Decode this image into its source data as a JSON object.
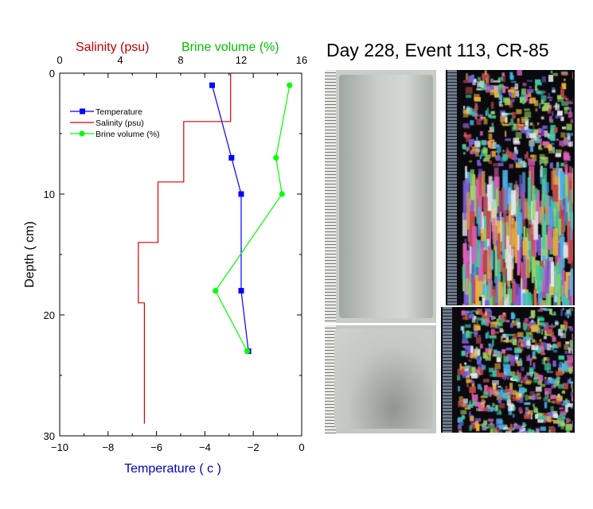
{
  "chart_data": {
    "type": "line",
    "y_axis": {
      "label": "Depth ( cm)",
      "range": [
        30,
        0
      ],
      "ticks": [
        0,
        10,
        20,
        30
      ]
    },
    "x_axis_bottom": {
      "label": "Temperature ( c )",
      "range": [
        -10,
        0
      ],
      "ticks": [
        -10,
        -8,
        -6,
        -4,
        -2,
        0
      ],
      "color": "#0000c0"
    },
    "x_axis_top": {
      "range": [
        0,
        16
      ],
      "ticks": [
        0,
        4,
        8,
        12,
        16
      ],
      "labels": [
        {
          "text": "Salinity (psu)",
          "color": "#c00000"
        },
        {
          "text": "Brine volume (%)",
          "color": "#00c000"
        }
      ]
    },
    "legend_position": "top-left",
    "series": [
      {
        "name": "Temperature",
        "axis": "bottom",
        "color": "#0000ff",
        "marker": "square",
        "points": [
          [
            -3.7,
            1
          ],
          [
            -2.9,
            7
          ],
          [
            -2.5,
            10
          ],
          [
            -2.5,
            18
          ],
          [
            -2.2,
            23
          ]
        ]
      },
      {
        "name": "Salinity (psu)",
        "axis": "top",
        "color": "#e00000",
        "marker": "none",
        "step": true,
        "points": [
          [
            11.3,
            0
          ],
          [
            11.3,
            4
          ],
          [
            8.2,
            4
          ],
          [
            8.2,
            9
          ],
          [
            6.5,
            9
          ],
          [
            6.5,
            14
          ],
          [
            5.2,
            14
          ],
          [
            5.2,
            19
          ],
          [
            5.6,
            19
          ],
          [
            5.6,
            29
          ]
        ]
      },
      {
        "name": "Brine volume (%)",
        "axis": "top",
        "color": "#00ff00",
        "marker": "circle",
        "points": [
          [
            15.2,
            1
          ],
          [
            14.3,
            7
          ],
          [
            14.7,
            10
          ],
          [
            10.3,
            18
          ],
          [
            12.4,
            23
          ]
        ]
      }
    ]
  },
  "panel_title": "Day 228, Event 113, CR-85",
  "colors": {
    "thin_section_palette": [
      "#e6e6ea",
      "#3cc8a0",
      "#d860b8",
      "#e8b040",
      "#4ab0e8",
      "#9ad060",
      "#c04848",
      "#7a5cd8"
    ]
  }
}
